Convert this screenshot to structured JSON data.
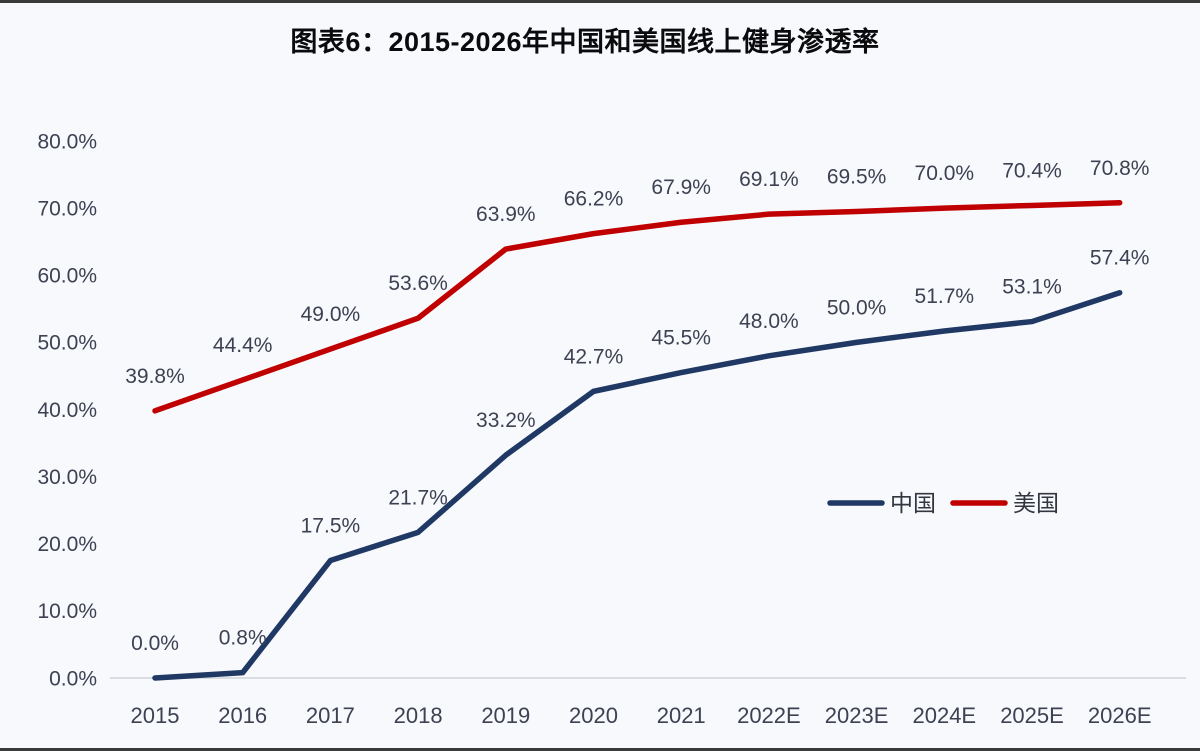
{
  "page": {
    "background": "#f7f9fc",
    "edge_color": "#3a3a3a"
  },
  "header": {
    "title": "图表6：2015-2026年中国和美国线上健身渗透率"
  },
  "chart_data": {
    "type": "line",
    "title": "图表6：2015-2026年中国和美国线上健身渗透率",
    "categories": [
      "2015",
      "2016",
      "2017",
      "2018",
      "2019",
      "2020",
      "2021",
      "2022E",
      "2023E",
      "2024E",
      "2025E",
      "2026E"
    ],
    "series": [
      {
        "name": "中国",
        "key": "china",
        "color": "#1f3864",
        "values": [
          0.0,
          0.8,
          17.5,
          21.7,
          33.2,
          42.7,
          45.5,
          48.0,
          50.0,
          51.7,
          53.1,
          57.4
        ]
      },
      {
        "name": "美国",
        "key": "usa",
        "color": "#c00000",
        "values": [
          39.8,
          44.4,
          49.0,
          53.6,
          63.9,
          66.2,
          67.9,
          69.1,
          69.5,
          70.0,
          70.4,
          70.8
        ]
      }
    ],
    "y_ticks": [
      0,
      10,
      20,
      30,
      40,
      50,
      60,
      70,
      80
    ],
    "y_tick_labels": [
      "0.0%",
      "10.0%",
      "20.0%",
      "30.0%",
      "40.0%",
      "50.0%",
      "60.0%",
      "70.0%",
      "80.0%"
    ],
    "point_labels": {
      "china": [
        "0.0%",
        "0.8%",
        "17.5%",
        "21.7%",
        "33.2%",
        "42.7%",
        "45.5%",
        "48.0%",
        "50.0%",
        "51.7%",
        "53.1%",
        "57.4%"
      ],
      "usa": [
        "39.8%",
        "44.4%",
        "49.0%",
        "53.6%",
        "63.9%",
        "66.2%",
        "67.9%",
        "69.1%",
        "69.5%",
        "70.0%",
        "70.4%",
        "70.8%"
      ]
    },
    "ylim": [
      0,
      80
    ],
    "grid": false,
    "legend_position": "right-middle",
    "legend": [
      "中国",
      "美国"
    ],
    "axis_line_color": "#d9dce1",
    "label_color": "#3d4152",
    "xlabel": "",
    "ylabel": ""
  }
}
